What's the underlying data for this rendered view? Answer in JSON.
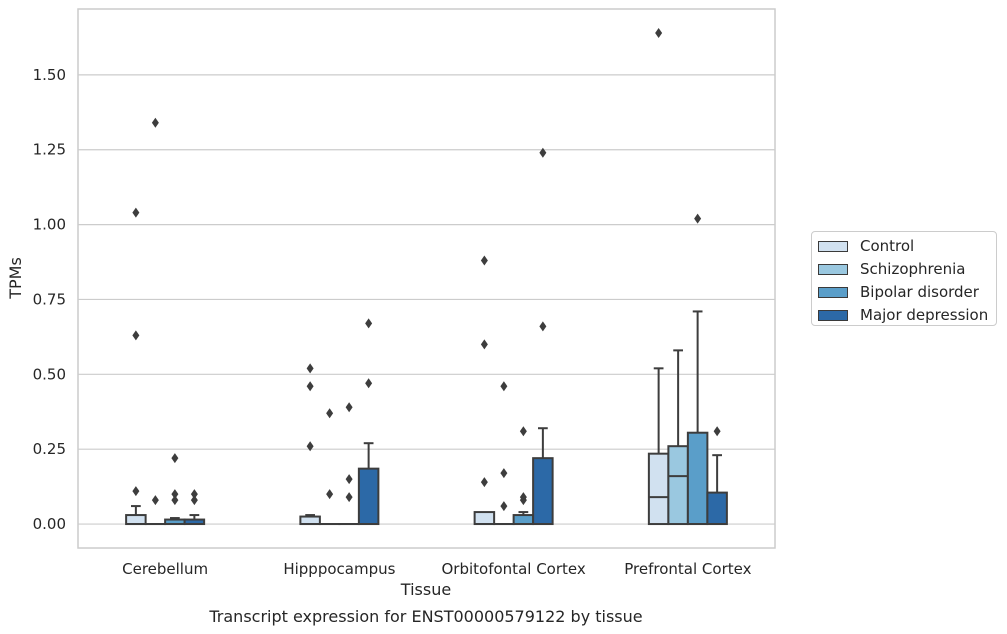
{
  "chart_data": {
    "type": "box",
    "title": "",
    "caption": "Transcript expression for ENST00000579122 by tissue",
    "xlabel": "Tissue",
    "ylabel": "TPMs",
    "ylim": [
      -0.08,
      1.72
    ],
    "yticks": [
      "0.00",
      "0.25",
      "0.50",
      "0.75",
      "1.00",
      "1.25",
      "1.50"
    ],
    "ytick_values": [
      0,
      0.25,
      0.5,
      0.75,
      1.0,
      1.25,
      1.5
    ],
    "grid": true,
    "legend_position": "right",
    "categories": [
      "Cerebellum",
      "Hipppocampus",
      "Orbitofontal Cortex",
      "Prefrontal Cortex"
    ],
    "series": [
      {
        "name": "Control",
        "color": "#d1e1f0",
        "boxes": [
          {
            "min": 0,
            "q1": 0,
            "median": 0,
            "q3": 0.03,
            "max": 0.06,
            "outliers": [
              0.11,
              0.63,
              1.04
            ]
          },
          {
            "min": 0,
            "q1": 0,
            "median": 0,
            "q3": 0.025,
            "max": 0.03,
            "outliers": [
              0.26,
              0.46,
              0.52
            ]
          },
          {
            "min": 0,
            "q1": 0,
            "median": 0,
            "q3": 0.04,
            "max": 0.04,
            "outliers": [
              0.14,
              0.6,
              0.88
            ]
          },
          {
            "min": 0,
            "q1": 0,
            "median": 0.09,
            "q3": 0.235,
            "max": 0.52,
            "outliers": [
              1.64
            ]
          }
        ]
      },
      {
        "name": "Schizophrenia",
        "color": "#9ac8e0",
        "boxes": [
          {
            "min": 0,
            "q1": 0,
            "median": 0,
            "q3": 0,
            "max": 0,
            "outliers": [
              0.08,
              1.34
            ]
          },
          {
            "min": 0,
            "q1": 0,
            "median": 0,
            "q3": 0,
            "max": 0,
            "outliers": [
              0.1,
              0.37
            ]
          },
          {
            "min": 0,
            "q1": 0,
            "median": 0,
            "q3": 0,
            "max": 0,
            "outliers": [
              0.06,
              0.17,
              0.46
            ]
          },
          {
            "min": 0,
            "q1": 0,
            "median": 0.16,
            "q3": 0.26,
            "max": 0.58,
            "outliers": []
          }
        ]
      },
      {
        "name": "Bipolar disorder",
        "color": "#5a9ec9",
        "boxes": [
          {
            "min": 0,
            "q1": 0,
            "median": 0,
            "q3": 0.015,
            "max": 0.02,
            "outliers": [
              0.08,
              0.1,
              0.22
            ]
          },
          {
            "min": 0,
            "q1": 0,
            "median": 0,
            "q3": 0,
            "max": 0,
            "outliers": [
              0.09,
              0.15,
              0.39
            ]
          },
          {
            "min": 0,
            "q1": 0,
            "median": 0,
            "q3": 0.03,
            "max": 0.04,
            "outliers": [
              0.08,
              0.09,
              0.31
            ]
          },
          {
            "min": 0,
            "q1": 0,
            "median": 0,
            "q3": 0.305,
            "max": 0.71,
            "outliers": [
              1.02
            ]
          }
        ]
      },
      {
        "name": "Major depression",
        "color": "#2c69a7",
        "boxes": [
          {
            "min": 0,
            "q1": 0,
            "median": 0,
            "q3": 0.015,
            "max": 0.03,
            "outliers": [
              0.08,
              0.1
            ]
          },
          {
            "min": 0,
            "q1": 0,
            "median": 0,
            "q3": 0.185,
            "max": 0.27,
            "outliers": [
              0.47,
              0.67
            ]
          },
          {
            "min": 0,
            "q1": 0,
            "median": 0,
            "q3": 0.22,
            "max": 0.32,
            "outliers": [
              0.66,
              1.24
            ]
          },
          {
            "min": 0,
            "q1": 0,
            "median": 0,
            "q3": 0.105,
            "max": 0.23,
            "outliers": [
              0.31
            ]
          }
        ]
      }
    ]
  }
}
